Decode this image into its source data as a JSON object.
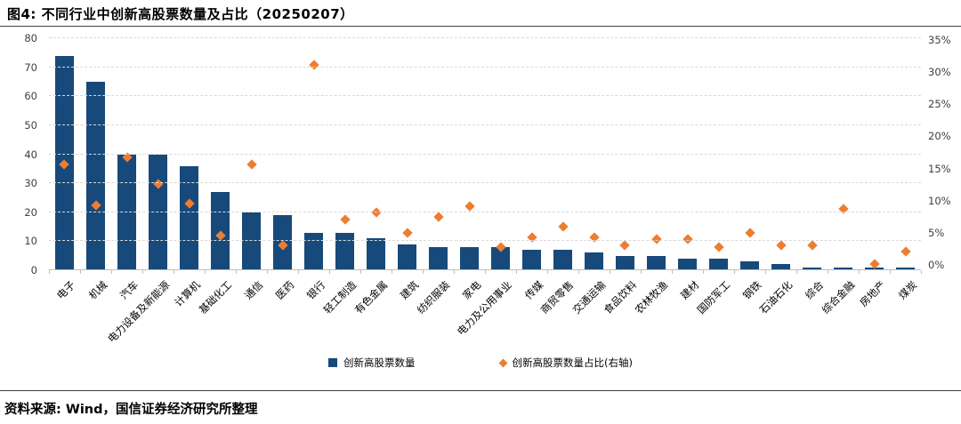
{
  "figure": {
    "title": "图4: 不同行业中创新高股票数量及占比（20250207）",
    "source": "资料来源: Wind，国信证券经济研究所整理"
  },
  "colors": {
    "bar": "#17497b",
    "marker": "#ed7d31",
    "gridline": "#d9d9d9",
    "axis_line": "#bfbfbf",
    "tick_text": "#404040",
    "rule": "#404040"
  },
  "chart_data": {
    "type": "bar",
    "subtype": "dual-axis: bars on left axis, diamond scatter on right axis",
    "title": "图4: 不同行业中创新高股票数量及占比（20250207）",
    "categories": [
      "电子",
      "机械",
      "汽车",
      "电力设备及新能源",
      "计算机",
      "基础化工",
      "通信",
      "医药",
      "银行",
      "轻工制造",
      "有色金属",
      "建筑",
      "纺织服装",
      "家电",
      "电力及公用事业",
      "传媒",
      "商贸零售",
      "交通运输",
      "食品饮料",
      "农林牧渔",
      "建材",
      "国防军工",
      "钢铁",
      "石油石化",
      "综合",
      "综合金融",
      "房地产",
      "煤炭"
    ],
    "series": [
      {
        "name": "创新高股票数量",
        "type": "bar",
        "axis": "left",
        "values": [
          74,
          65,
          40,
          40,
          36,
          27,
          20,
          19,
          13,
          13,
          11,
          9,
          8,
          8,
          8,
          7,
          7,
          6,
          5,
          5,
          4,
          4,
          3,
          2,
          1,
          1,
          1,
          1
        ]
      },
      {
        "name": "创新高股票数量占比(右轴)",
        "type": "scatter",
        "marker": "diamond",
        "axis": "right",
        "values_percent": [
          16.0,
          9.8,
          17.0,
          13.0,
          10.0,
          5.2,
          16.0,
          3.8,
          31.0,
          7.7,
          8.7,
          5.6,
          8.1,
          9.7,
          3.5,
          4.9,
          6.6,
          4.9,
          3.8,
          4.7,
          4.7,
          3.5,
          5.7,
          3.8,
          3.8,
          9.2,
          0.9,
          2.8
        ]
      }
    ],
    "left_axis": {
      "min": 0,
      "max": 80,
      "tick_step": 10,
      "ticks": [
        "0",
        "10",
        "20",
        "30",
        "40",
        "50",
        "60",
        "70",
        "80"
      ]
    },
    "right_axis": {
      "min_percent": 0,
      "max_percent": 35,
      "tick_step_percent": 5,
      "ticks": [
        "0%",
        "5%",
        "10%",
        "15%",
        "20%",
        "25%",
        "30%",
        "35%"
      ]
    },
    "grid": "horizontal dashed",
    "legend_position": "bottom center"
  }
}
